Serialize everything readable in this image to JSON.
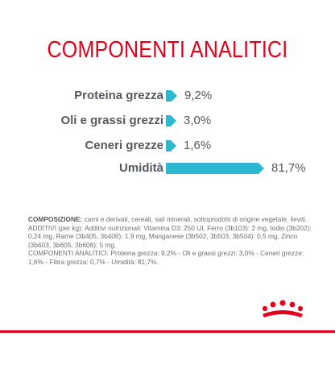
{
  "title": "COMPONENTI ANALITICI",
  "colors": {
    "title_red": "#e2001a",
    "bar_blue": "#2eb8d0",
    "text_gray": "#555a5f"
  },
  "chart_data": {
    "type": "bar",
    "orientation": "horizontal",
    "categories": [
      "Proteina grezza",
      "Oli e grassi grezzi",
      "Ceneri grezze",
      "Umidità"
    ],
    "values": [
      9.2,
      3.0,
      1.6,
      81.7
    ],
    "value_labels": [
      "9,2%",
      "3,0%",
      "1,6%",
      "81,7%"
    ],
    "unit": "%"
  },
  "composition": {
    "heading": "COMPOSIZIONE:",
    "text": " carni e derivati, cereali, sali minerali, sottoprodotti di origine vegetale, lieviti.",
    "additives": "ADDITIVI (per kg): Additivi nutrizionali: Vitamina D3: 250 UI, Ferro (3b103): 2 mg, Iodio (3b202): 0,24 mg, Rame (3b405, 3b406): 1,9 mg, Manganese (3b502, 3b503, 3b504): 0,5 mg, Zinco (3b603, 3b605, 3b606): 5 mg.",
    "analytical": "COMPONENTI ANALITICI: Proteina grezza: 9,2% - Oli e grassi grezzi: 3,0% - Ceneri grezze: 1,6% - Fibra grezza: 0,7% - Umidità: 81,7%."
  },
  "logo": {
    "icon": "royal-canin-crown-icon"
  }
}
